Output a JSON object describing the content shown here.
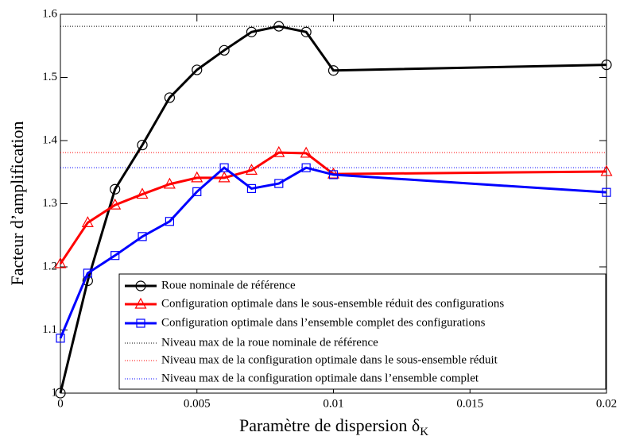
{
  "chart_data": {
    "type": "line",
    "xlabel": {
      "text": "Paramètre de dispersion δ",
      "subscript": "K"
    },
    "ylabel": "Facteur d’amplification",
    "x": [
      0,
      0.001,
      0.002,
      0.003,
      0.004,
      0.005,
      0.006,
      0.007,
      0.008,
      0.009,
      0.01,
      0.02
    ],
    "series": [
      {
        "name": "Roue nominale de référence",
        "color": "#000000",
        "marker": "circle",
        "values": [
          1.0,
          1.178,
          1.323,
          1.393,
          1.468,
          1.512,
          1.543,
          1.572,
          1.581,
          1.572,
          1.511,
          1.52
        ]
      },
      {
        "name": "Configuration optimale dans le sous-ensemble réduit des configurations",
        "color": "#ff0000",
        "marker": "triangle",
        "values": [
          1.205,
          1.27,
          1.298,
          1.315,
          1.331,
          1.341,
          1.341,
          1.353,
          1.381,
          1.38,
          1.347,
          1.351
        ]
      },
      {
        "name": "Configuration optimale dans l’ensemble complet des configurations",
        "color": "#0000ff",
        "marker": "square",
        "values": [
          1.087,
          1.19,
          1.218,
          1.248,
          1.272,
          1.319,
          1.357,
          1.324,
          1.332,
          1.357,
          1.346,
          1.318
        ]
      }
    ],
    "reference_lines": [
      {
        "name": "Niveau max de la roue nominale de référence",
        "color": "#000000",
        "value": 1.581
      },
      {
        "name": "Niveau max de la configuration optimale dans le sous-ensemble réduit",
        "color": "#ff0000",
        "value": 1.381
      },
      {
        "name": "Niveau max de la configuration optimale dans l’ensemble complet",
        "color": "#0000ff",
        "value": 1.357
      }
    ],
    "xlim": [
      0,
      0.02
    ],
    "ylim": [
      1.0,
      1.6
    ],
    "xticks": [
      0,
      0.005,
      0.01,
      0.015,
      0.02
    ],
    "yticks": [
      1,
      1.1,
      1.2,
      1.3,
      1.4,
      1.5,
      1.6
    ],
    "grid": false,
    "legend": "lower right"
  }
}
